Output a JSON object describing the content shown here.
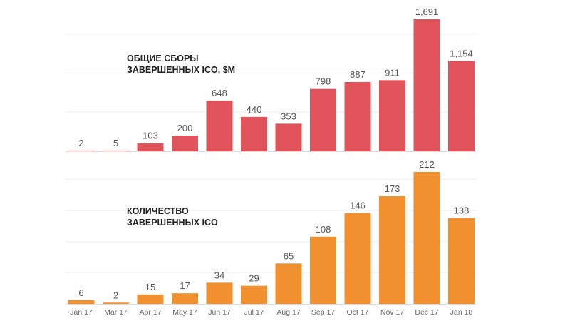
{
  "chart_data": [
    {
      "type": "bar",
      "title": [
        "ОБЩИЕ СБОРЫ",
        "ЗАВЕРШЕННЫХ ICO, $M"
      ],
      "categories": [
        "Jan 17",
        "Mar 17",
        "Apr 17",
        "May 17",
        "Jun 17",
        "Jul 17",
        "Aug 17",
        "Sep 17",
        "Oct 17",
        "Nov 17",
        "Dec 17",
        "Jan 18"
      ],
      "values": [
        2,
        5,
        103,
        200,
        648,
        440,
        353,
        798,
        887,
        911,
        1691,
        1154
      ],
      "labels": [
        "2",
        "5",
        "103",
        "200",
        "648",
        "440",
        "353",
        "798",
        "887",
        "911",
        "1,691",
        "1,154"
      ],
      "ylim": [
        0,
        1691
      ],
      "grid_step": 500,
      "grid": true,
      "color": "#e0535a"
    },
    {
      "type": "bar",
      "title": [
        "КОЛИЧЕСТВО",
        "ЗАВЕРШЕННЫХ ICO"
      ],
      "categories": [
        "Jan 17",
        "Mar 17",
        "Apr 17",
        "May 17",
        "Jun 17",
        "Jul 17",
        "Aug 17",
        "Sep 17",
        "Oct 17",
        "Nov 17",
        "Dec 17",
        "Jan 18"
      ],
      "values": [
        6,
        2,
        15,
        17,
        34,
        29,
        65,
        108,
        146,
        173,
        212,
        138
      ],
      "labels": [
        "6",
        "2",
        "15",
        "17",
        "34",
        "29",
        "65",
        "108",
        "146",
        "173",
        "212",
        "138"
      ],
      "ylim": [
        0,
        212
      ],
      "grid_step": 50,
      "grid": true,
      "color": "#f0902f"
    }
  ]
}
